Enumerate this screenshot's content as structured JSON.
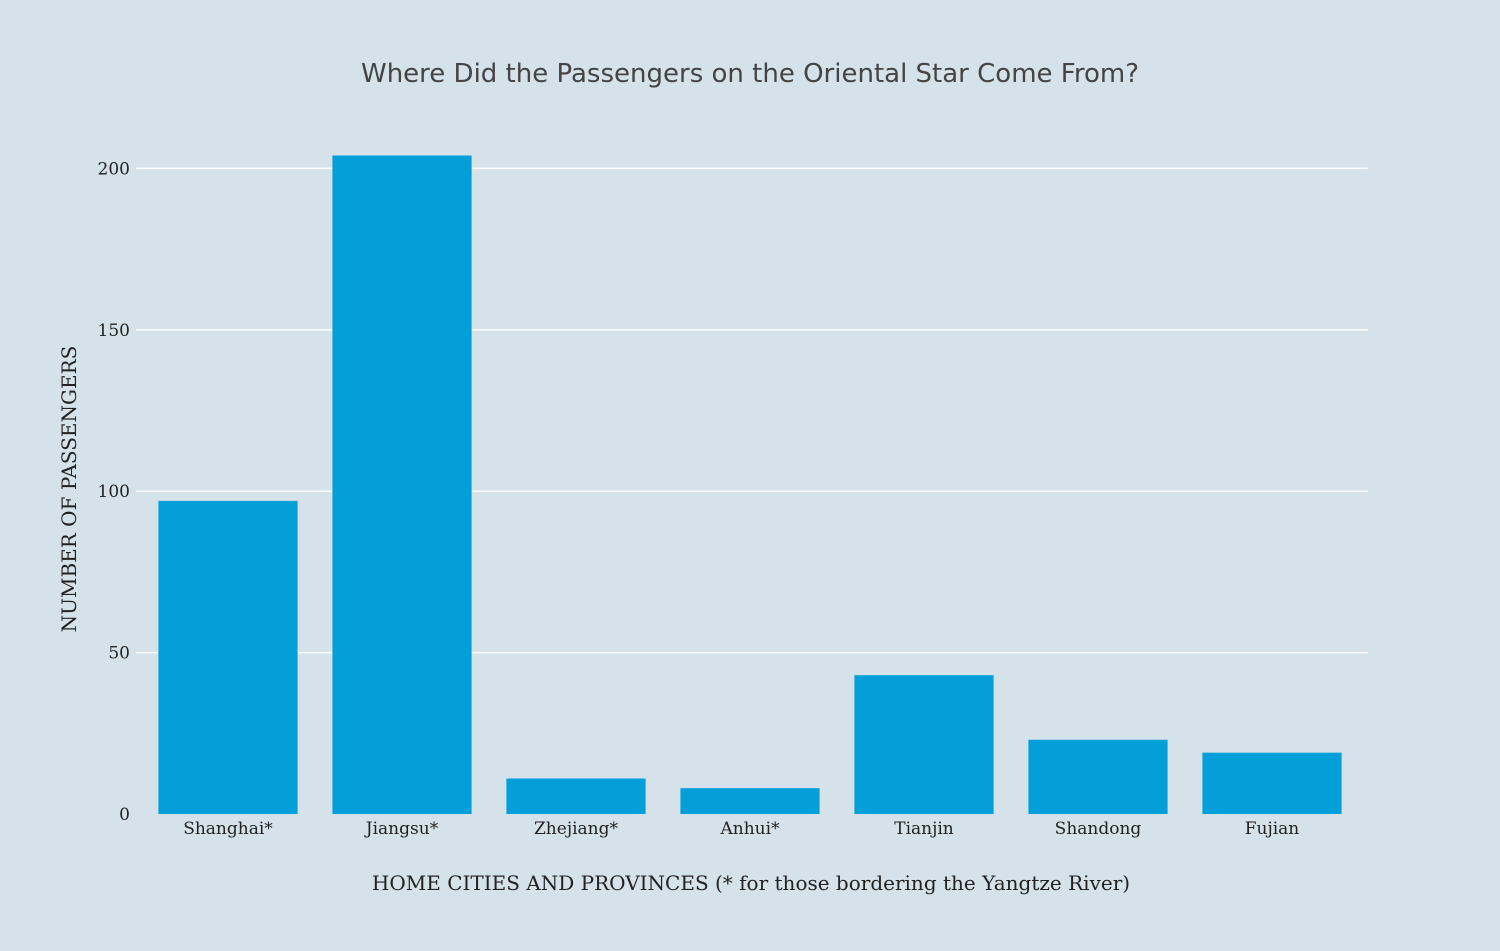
{
  "colors": {
    "background": "#d5e2ea",
    "bar": "#049fd9",
    "grid": "#ffffff",
    "title": "#444444",
    "text": "#222222"
  },
  "chart_data": {
    "type": "bar",
    "title": "Where Did the Passengers on the Oriental Star Come From?",
    "xlabel": "HOME CITIES AND PROVINCES (* for those bordering the Yangtze River)",
    "ylabel": "NUMBER OF PASSENGERS",
    "categories": [
      "Shanghai*",
      "Jiangsu*",
      "Zhejiang*",
      "Anhui*",
      "Tianjin",
      "Shandong",
      "Fujian"
    ],
    "values": [
      97,
      204,
      11,
      8,
      43,
      23,
      19
    ],
    "ylim": [
      0,
      215
    ],
    "yticks": [
      0,
      50,
      100,
      150,
      200
    ],
    "grid": true,
    "legend": "none"
  }
}
